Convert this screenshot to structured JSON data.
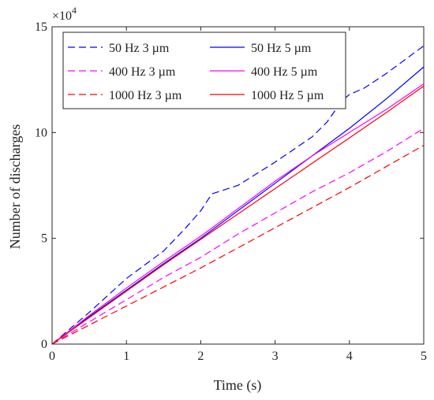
{
  "chart_data": {
    "type": "line",
    "xlabel": "Time (s)",
    "ylabel": "Number of discharges",
    "xlim": [
      0,
      5
    ],
    "ylim": [
      0,
      150000
    ],
    "x_ticks": [
      0,
      1,
      2,
      3,
      4,
      5
    ],
    "x_tick_labels": [
      "0",
      "1",
      "2",
      "3",
      "4",
      "5"
    ],
    "y_ticks": [
      0,
      50000,
      100000,
      150000
    ],
    "y_tick_labels": [
      "0",
      "5",
      "10",
      "15"
    ],
    "y_multiplier": {
      "base": "×10",
      "exponent": "4"
    },
    "grid": false,
    "legend_position": "top-left",
    "series": [
      {
        "name": "50 Hz 3 µm",
        "color": "#0000ff",
        "dash": "dashed",
        "x": [
          0,
          0.5,
          1,
          1.5,
          1.8,
          2.0,
          2.15,
          2.5,
          3.0,
          3.5,
          3.7,
          3.9,
          4.0,
          4.2,
          4.5,
          5.0
        ],
        "y": [
          0,
          15000,
          31000,
          44000,
          55000,
          63000,
          71000,
          75000,
          86000,
          98000,
          105000,
          115000,
          118000,
          121000,
          128000,
          141000
        ]
      },
      {
        "name": "400 Hz 3 µm",
        "color": "#ff00ff",
        "dash": "dashed",
        "x": [
          0,
          0.5,
          1,
          1.5,
          2,
          2.5,
          3,
          3.5,
          4,
          4.5,
          5
        ],
        "y": [
          0,
          10500,
          21000,
          31500,
          41000,
          52000,
          62000,
          72000,
          81000,
          91000,
          102000
        ]
      },
      {
        "name": "1000 Hz 3 µm",
        "color": "#ff0000",
        "dash": "dashed",
        "x": [
          0,
          0.5,
          1,
          1.5,
          2,
          2.5,
          3,
          3.5,
          4,
          4.5,
          5
        ],
        "y": [
          0,
          9000,
          18000,
          27000,
          36000,
          45500,
          55000,
          64500,
          74000,
          84000,
          94000
        ]
      },
      {
        "name": "50 Hz 5 µm",
        "color": "#0000ff",
        "dash": "solid",
        "x": [
          0,
          0.5,
          1,
          1.5,
          2,
          2.5,
          3,
          3.5,
          4,
          4.5,
          5
        ],
        "y": [
          0,
          13000,
          25500,
          38000,
          50000,
          63000,
          76000,
          89000,
          102000,
          116000,
          131000
        ]
      },
      {
        "name": "400 Hz 5 µm",
        "color": "#ff00ff",
        "dash": "solid",
        "x": [
          0,
          0.5,
          1,
          1.5,
          2,
          2.5,
          3,
          3.5,
          4,
          4.5,
          5
        ],
        "y": [
          0,
          13500,
          26500,
          39000,
          51000,
          64000,
          77000,
          89000,
          100000,
          111000,
          123000
        ]
      },
      {
        "name": "1000 Hz 5 µm",
        "color": "#ff0000",
        "dash": "solid",
        "x": [
          0,
          0.5,
          1,
          1.5,
          2,
          2.5,
          3,
          3.5,
          4,
          4.5,
          5
        ],
        "y": [
          0,
          12500,
          25000,
          37500,
          49500,
          61500,
          73500,
          85500,
          97500,
          109500,
          122000
        ]
      }
    ],
    "legend_order": [
      0,
      3,
      1,
      4,
      2,
      5
    ]
  }
}
